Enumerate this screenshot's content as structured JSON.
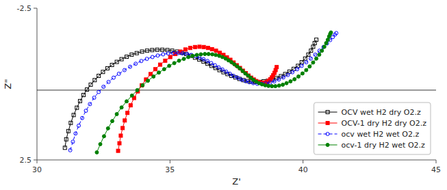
{
  "chart_data": {
    "type": "line",
    "x_label": "Z'",
    "y_label": "Z\"",
    "xlim": [
      30,
      45
    ],
    "ylim": [
      2.5,
      -2.5
    ],
    "xticks": [
      30,
      35,
      40,
      45
    ],
    "yticks": [
      -2.5,
      2.5
    ],
    "reference_line": 0.2,
    "grid": false,
    "legend": "lower right",
    "series": [
      {
        "name": "OCV wet H2 dry O2.z",
        "color": "#000000",
        "marker": "square-open",
        "line_style": "solid",
        "x": [
          31.05,
          31.1,
          31.18,
          31.27,
          31.38,
          31.5,
          31.62,
          31.75,
          31.88,
          32.02,
          32.17,
          32.32,
          32.48,
          32.65,
          32.82,
          33.0,
          33.18,
          33.37,
          33.56,
          33.75,
          33.95,
          34.14,
          34.33,
          34.52,
          34.71,
          34.9,
          35.08,
          35.26,
          35.44,
          35.61,
          35.78,
          35.94,
          36.1,
          36.26,
          36.41,
          36.56,
          36.71,
          36.86,
          37.01,
          37.16,
          37.31,
          37.46,
          37.61,
          37.76,
          37.91,
          38.06,
          38.21,
          38.36,
          38.52,
          38.68,
          38.84,
          39.0,
          39.17,
          39.33,
          39.49,
          39.65,
          39.81,
          39.95,
          40.08,
          40.2,
          40.3,
          40.38,
          40.44,
          40.5
        ],
        "values": [
          2.1,
          1.82,
          1.55,
          1.28,
          1.02,
          0.78,
          0.56,
          0.36,
          0.18,
          0.02,
          -0.13,
          -0.27,
          -0.4,
          -0.52,
          -0.63,
          -0.73,
          -0.82,
          -0.9,
          -0.97,
          -1.02,
          -1.07,
          -1.1,
          -1.12,
          -1.13,
          -1.13,
          -1.12,
          -1.1,
          -1.07,
          -1.03,
          -0.99,
          -0.93,
          -0.87,
          -0.81,
          -0.74,
          -0.67,
          -0.6,
          -0.53,
          -0.46,
          -0.39,
          -0.33,
          -0.27,
          -0.22,
          -0.17,
          -0.13,
          -0.1,
          -0.08,
          -0.07,
          -0.07,
          -0.09,
          -0.11,
          -0.15,
          -0.2,
          -0.26,
          -0.33,
          -0.41,
          -0.5,
          -0.6,
          -0.72,
          -0.84,
          -0.97,
          -1.1,
          -1.23,
          -1.35,
          -1.46
        ]
      },
      {
        "name": "OCV-1 dry H2 dry O2.z",
        "color": "#ff0000",
        "marker": "square",
        "line_style": "solid",
        "x": [
          33.05,
          33.1,
          33.15,
          33.22,
          33.3,
          33.4,
          33.52,
          33.65,
          33.79,
          33.94,
          34.1,
          34.27,
          34.45,
          34.63,
          34.82,
          35.01,
          35.2,
          35.39,
          35.58,
          35.76,
          35.94,
          36.11,
          36.27,
          36.43,
          36.58,
          36.73,
          36.87,
          37.01,
          37.14,
          37.27,
          37.39,
          37.51,
          37.63,
          37.74,
          37.85,
          37.95,
          38.05,
          38.15,
          38.24,
          38.33,
          38.41,
          38.49,
          38.57,
          38.64,
          38.71,
          38.77,
          38.83,
          38.88,
          38.93,
          38.97,
          39.01
        ],
        "values": [
          2.2,
          1.95,
          1.7,
          1.45,
          1.2,
          0.95,
          0.7,
          0.46,
          0.24,
          0.04,
          -0.15,
          -0.33,
          -0.49,
          -0.64,
          -0.77,
          -0.89,
          -0.99,
          -1.07,
          -1.14,
          -1.19,
          -1.22,
          -1.23,
          -1.22,
          -1.19,
          -1.15,
          -1.1,
          -1.03,
          -0.96,
          -0.88,
          -0.8,
          -0.71,
          -0.62,
          -0.53,
          -0.44,
          -0.36,
          -0.28,
          -0.21,
          -0.15,
          -0.1,
          -0.07,
          -0.05,
          -0.04,
          -0.05,
          -0.07,
          -0.11,
          -0.16,
          -0.22,
          -0.29,
          -0.37,
          -0.46,
          -0.56
        ]
      },
      {
        "name": "ocv wet H2 wet O2.z",
        "color": "#0000ff",
        "marker": "circle-open",
        "line_style": "dashed",
        "x": [
          31.25,
          31.35,
          31.45,
          31.57,
          31.7,
          31.84,
          31.99,
          32.15,
          32.32,
          32.5,
          32.69,
          32.88,
          33.08,
          33.29,
          33.5,
          33.71,
          33.92,
          34.13,
          34.34,
          34.54,
          34.74,
          34.93,
          35.12,
          35.3,
          35.47,
          35.64,
          35.8,
          35.96,
          36.11,
          36.26,
          36.41,
          36.55,
          36.69,
          36.83,
          36.97,
          37.11,
          37.25,
          37.39,
          37.54,
          37.68,
          37.83,
          37.98,
          38.13,
          38.28,
          38.44,
          38.6,
          38.76,
          38.92,
          39.09,
          39.26,
          39.43,
          39.6,
          39.78,
          39.95,
          40.12,
          40.29,
          40.46,
          40.62,
          40.77,
          40.9,
          41.02,
          41.12,
          41.2,
          41.25
        ],
        "values": [
          2.18,
          1.9,
          1.63,
          1.37,
          1.12,
          0.88,
          0.66,
          0.45,
          0.26,
          0.09,
          -0.07,
          -0.21,
          -0.34,
          -0.46,
          -0.57,
          -0.67,
          -0.76,
          -0.83,
          -0.89,
          -0.94,
          -0.98,
          -1.01,
          -1.02,
          -1.02,
          -1.01,
          -0.99,
          -0.96,
          -0.92,
          -0.87,
          -0.82,
          -0.76,
          -0.69,
          -0.62,
          -0.55,
          -0.48,
          -0.41,
          -0.34,
          -0.27,
          -0.21,
          -0.15,
          -0.1,
          -0.06,
          -0.03,
          -0.01,
          -0.01,
          -0.02,
          -0.05,
          -0.09,
          -0.15,
          -0.22,
          -0.3,
          -0.39,
          -0.49,
          -0.6,
          -0.72,
          -0.84,
          -0.97,
          -1.1,
          -1.22,
          -1.34,
          -1.45,
          -1.55,
          -1.63,
          -1.68
        ]
      },
      {
        "name": "ocv-1 dry H2 wet O2.z",
        "color": "#008000",
        "marker": "circle",
        "line_style": "solid",
        "x": [
          32.25,
          32.38,
          32.52,
          32.67,
          32.83,
          33.0,
          33.18,
          33.37,
          33.57,
          33.77,
          33.97,
          34.17,
          34.38,
          34.58,
          34.78,
          34.97,
          35.16,
          35.34,
          35.52,
          35.69,
          35.85,
          36.01,
          36.16,
          36.31,
          36.45,
          36.59,
          36.72,
          36.85,
          36.97,
          37.09,
          37.2,
          37.31,
          37.42,
          37.53,
          37.63,
          37.73,
          37.83,
          37.93,
          38.03,
          38.13,
          38.24,
          38.35,
          38.46,
          38.58,
          38.7,
          38.83,
          38.96,
          39.1,
          39.24,
          39.38,
          39.53,
          39.68,
          39.83,
          39.98,
          40.12,
          40.25,
          40.38,
          40.5,
          40.61,
          40.71,
          40.8,
          40.87,
          40.93,
          40.98,
          41.02,
          41.05
        ],
        "values": [
          2.25,
          1.98,
          1.72,
          1.46,
          1.22,
          0.99,
          0.77,
          0.57,
          0.38,
          0.2,
          0.04,
          -0.11,
          -0.25,
          -0.38,
          -0.49,
          -0.6,
          -0.69,
          -0.77,
          -0.83,
          -0.89,
          -0.93,
          -0.96,
          -0.98,
          -0.99,
          -0.99,
          -0.98,
          -0.96,
          -0.93,
          -0.89,
          -0.84,
          -0.78,
          -0.72,
          -0.65,
          -0.58,
          -0.51,
          -0.43,
          -0.35,
          -0.28,
          -0.21,
          -0.14,
          -0.08,
          -0.03,
          0.01,
          0.04,
          0.06,
          0.07,
          0.07,
          0.05,
          0.02,
          -0.03,
          -0.09,
          -0.16,
          -0.25,
          -0.35,
          -0.46,
          -0.58,
          -0.71,
          -0.84,
          -0.97,
          -1.1,
          -1.23,
          -1.35,
          -1.46,
          -1.57,
          -1.65,
          -1.7
        ]
      }
    ]
  }
}
